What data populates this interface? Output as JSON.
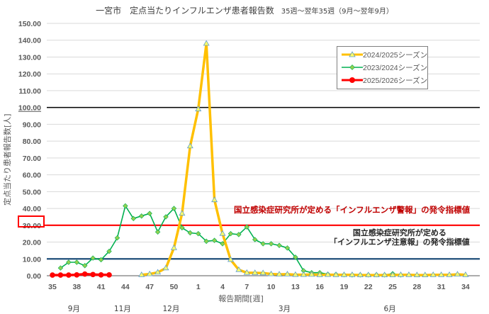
{
  "title": {
    "main": "一宮市　定点当たりインフルエンザ患者報告数",
    "sub": "35週～翌年35週（9月～翌年9月）"
  },
  "axes": {
    "ylabel": "定点当たり患者報告数[人]",
    "xlabel": "報告期間[週]",
    "yticks": [
      "0.00",
      "10.00",
      "20.00",
      "30.00",
      "40.00",
      "50.00",
      "60.00",
      "70.00",
      "80.00",
      "90.00",
      "100.00",
      "110.00",
      "120.00",
      "130.00",
      "140.00",
      "150.00"
    ],
    "xticks": [
      "35",
      "38",
      "41",
      "44",
      "47",
      "50",
      "1",
      "4",
      "7",
      "10",
      "13",
      "16",
      "19",
      "22",
      "25",
      "28",
      "31",
      "34"
    ],
    "months": [
      {
        "label": "9月",
        "week_index": 3
      },
      {
        "label": "11月",
        "week_index": 9
      },
      {
        "label": "12月",
        "week_index": 15
      },
      {
        "label": "3月",
        "week_index": 29
      },
      {
        "label": "6月",
        "week_index": 42
      }
    ]
  },
  "legend": {
    "items": [
      {
        "label": "2024/2025シーズン",
        "color": "#ffc000",
        "marker": "triangle"
      },
      {
        "label": "2023/2024シーズン",
        "color": "#00b050",
        "marker": "diamond"
      },
      {
        "label": "2025/2026シーズン",
        "color": "#ff0000",
        "marker": "circle"
      }
    ]
  },
  "annotations": {
    "warning": "国立感染症研究所が定める「インフルエンザ警報」の発令指標値",
    "caution_line1": "国立感染症研究所が定める",
    "caution_line2": "「インフルエンザ注意報」の発令指標値",
    "highlight_tick": "30.00"
  },
  "chart_data": {
    "type": "line",
    "title": "一宮市　定点当たりインフルエンザ患者報告数　35週～翌年35週（9月～翌年9月）",
    "xlabel": "報告期間[週]",
    "ylabel": "定点当たり患者報告数[人]",
    "ylim": [
      0,
      150
    ],
    "grid": true,
    "legend_position": "upper right",
    "x": [
      "35",
      "36",
      "37",
      "38",
      "39",
      "40",
      "41",
      "42",
      "43",
      "44",
      "45",
      "46",
      "47",
      "48",
      "49",
      "50",
      "51",
      "52",
      "1",
      "2",
      "3",
      "4",
      "5",
      "6",
      "7",
      "8",
      "9",
      "10",
      "11",
      "12",
      "13",
      "14",
      "15",
      "16",
      "17",
      "18",
      "19",
      "20",
      "21",
      "22",
      "23",
      "24",
      "25",
      "26",
      "27",
      "28",
      "29",
      "30",
      "31",
      "32",
      "33",
      "34"
    ],
    "reference_lines": [
      {
        "name": "警報レベル",
        "value": 30,
        "color": "#ff0000"
      },
      {
        "name": "注意報レベル",
        "value": 10,
        "color": "#1f4e79"
      },
      {
        "name": "100ライン",
        "value": 100,
        "color": "#000000"
      }
    ],
    "series": [
      {
        "name": "2024/2025シーズン",
        "color": "#ffc000",
        "values": [
          null,
          null,
          null,
          null,
          null,
          null,
          null,
          null,
          null,
          null,
          null,
          0.5,
          1.0,
          2.0,
          4.5,
          16.5,
          37.0,
          77.0,
          99.0,
          138.0,
          45.0,
          25.0,
          9.5,
          3.5,
          1.8,
          1.7,
          1.6,
          1.0,
          0.8,
          0.9,
          0.6,
          0.6,
          0.7,
          0.5,
          0.6,
          0.5,
          0.5,
          0.5,
          0.4,
          0.4,
          0.4,
          0.4,
          0.4,
          0.5,
          0.5,
          0.4,
          0.4,
          0.5,
          0.5,
          0.5,
          0.8,
          0.5
        ]
      },
      {
        "name": "2023/2024シーズン",
        "color": "#00b050",
        "values": [
          null,
          4.6,
          8.0,
          8.0,
          6.0,
          10.5,
          9.5,
          14.5,
          22.5,
          41.5,
          34.0,
          35.5,
          37.0,
          26.0,
          35.0,
          40.0,
          28.5,
          25.5,
          25.0,
          20.5,
          21.0,
          19.0,
          25.0,
          24.5,
          29.0,
          21.5,
          19.0,
          19.0,
          18.0,
          16.5,
          11.0,
          3.0,
          1.8,
          1.8,
          0.9,
          0.8,
          0.6,
          0.5,
          0.5,
          0.5,
          0.6,
          0.5,
          1.2,
          0.5,
          null,
          null,
          null,
          null,
          null,
          null,
          null,
          null
        ]
      },
      {
        "name": "2025/2026シーズン",
        "color": "#ff0000",
        "values": [
          0.4,
          0.4,
          0.4,
          0.5,
          1.0,
          0.7,
          0.5,
          0.5,
          null,
          null,
          null,
          null,
          null,
          null,
          null,
          null,
          null,
          null,
          null,
          null,
          null,
          null,
          null,
          null,
          null,
          null,
          null,
          null,
          null,
          null,
          null,
          null,
          null,
          null,
          null,
          null,
          null,
          null,
          null,
          null,
          null,
          null,
          null,
          null,
          null,
          null,
          null,
          null,
          null,
          null,
          null,
          null
        ]
      }
    ]
  }
}
